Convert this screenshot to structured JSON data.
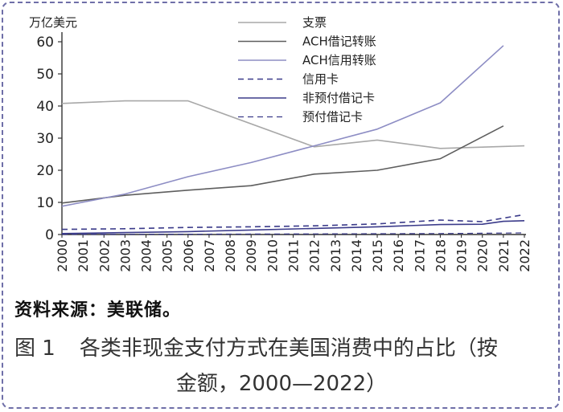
{
  "chart_data": {
    "type": "line",
    "ylabel": "万亿美元",
    "ylim": [
      0,
      60
    ],
    "yticks": [
      0,
      10,
      20,
      30,
      40,
      50,
      60
    ],
    "categories": [
      "2000",
      "2001",
      "2002",
      "2003",
      "2004",
      "2005",
      "2006",
      "2007",
      "2008",
      "2009",
      "2010",
      "2011",
      "2012",
      "2013",
      "2014",
      "2015",
      "2016",
      "2017",
      "2018",
      "2019",
      "2020",
      "2021",
      "2022"
    ],
    "legend_position": "top-right",
    "grid": false,
    "series": [
      {
        "name": "支票",
        "color": "#a8a8a8",
        "dash": "solid",
        "width": 1.6,
        "points": [
          [
            2000,
            40.8
          ],
          [
            2003,
            41.6
          ],
          [
            2006,
            41.6
          ],
          [
            2012,
            27.3
          ],
          [
            2015,
            29.4
          ],
          [
            2018,
            26.8
          ],
          [
            2022,
            27.6
          ]
        ]
      },
      {
        "name": "ACH借记转账",
        "color": "#5e5e5e",
        "dash": "solid",
        "width": 1.6,
        "points": [
          [
            2000,
            9.8
          ],
          [
            2003,
            12.2
          ],
          [
            2006,
            13.8
          ],
          [
            2009,
            15.2
          ],
          [
            2012,
            18.8
          ],
          [
            2015,
            20.0
          ],
          [
            2018,
            23.6
          ],
          [
            2021,
            33.8
          ]
        ]
      },
      {
        "name": "ACH信用转账",
        "color": "#8d8dc4",
        "dash": "solid",
        "width": 1.6,
        "points": [
          [
            2000,
            8.8
          ],
          [
            2003,
            12.6
          ],
          [
            2006,
            18.0
          ],
          [
            2009,
            22.4
          ],
          [
            2012,
            27.6
          ],
          [
            2015,
            32.8
          ],
          [
            2018,
            41.0
          ],
          [
            2021,
            58.8
          ]
        ]
      },
      {
        "name": "信用卡",
        "color": "#3b3b8a",
        "dash": "dashed",
        "width": 1.6,
        "points": [
          [
            2000,
            1.6
          ],
          [
            2003,
            1.8
          ],
          [
            2006,
            2.2
          ],
          [
            2009,
            2.4
          ],
          [
            2012,
            2.7
          ],
          [
            2015,
            3.3
          ],
          [
            2018,
            4.5
          ],
          [
            2020,
            4.0
          ],
          [
            2022,
            6.2
          ]
        ]
      },
      {
        "name": "非预付借记卡",
        "color": "#3b3b8a",
        "dash": "solid",
        "width": 1.6,
        "points": [
          [
            2000,
            0.3
          ],
          [
            2003,
            0.6
          ],
          [
            2006,
            0.9
          ],
          [
            2009,
            1.4
          ],
          [
            2012,
            1.9
          ],
          [
            2015,
            2.4
          ],
          [
            2018,
            3.1
          ],
          [
            2020,
            3.2
          ],
          [
            2021,
            4.1
          ],
          [
            2022,
            4.3
          ]
        ]
      },
      {
        "name": "预付借记卡",
        "color": "#3b3b8a",
        "dash": "dashed",
        "width": 1.2,
        "points": [
          [
            2000,
            0.05
          ],
          [
            2006,
            0.1
          ],
          [
            2012,
            0.2
          ],
          [
            2018,
            0.3
          ],
          [
            2022,
            0.5
          ]
        ]
      }
    ]
  },
  "source_text": "资料来源：美联储。",
  "caption": {
    "figure_number": "图 1",
    "title_line1": "各类非现金支付方式在美国消费中的占比（按",
    "title_line2": "金额，2000—2022）"
  }
}
